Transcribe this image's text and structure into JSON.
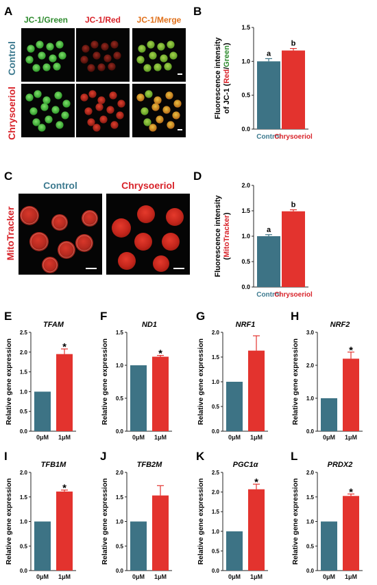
{
  "colors": {
    "control_bar": "#3d7385",
    "treated_bar": "#e3332e",
    "control_text": "#3d7a8f",
    "treated_text": "#d8232a",
    "green_channel": "#2e8b2e",
    "red_channel": "#d8232a",
    "merge_channel": "#e0701a",
    "axis": "#222222"
  },
  "panel_letters": [
    "A",
    "B",
    "C",
    "D",
    "E",
    "F",
    "G",
    "H",
    "I",
    "J",
    "K",
    "L"
  ],
  "panel_a": {
    "col_labels": [
      "JC-1/Green",
      "JC-1/Red",
      "JC-1/Merge"
    ],
    "row_labels": [
      "Control",
      "Chrysoeriol"
    ]
  },
  "panel_c": {
    "col_labels": [
      "Control",
      "Chrysoeriol"
    ],
    "row_label": "MitoTracker"
  },
  "chart_data": [
    {
      "panel": "B",
      "type": "bar",
      "categories": [
        "Control",
        "Chrysoeriol"
      ],
      "values": [
        1.0,
        1.16
      ],
      "errors": [
        0.04,
        0.03
      ],
      "sig_labels": [
        "a",
        "b"
      ],
      "ylabel": "Fluorescence intensity of JC-1 (Red/Green)",
      "ylabel_parts": [
        "Fluorescence intensity",
        "of JC-1 (",
        "Red",
        "/",
        "Green",
        ")"
      ],
      "ylim": [
        0,
        1.5
      ],
      "yticks": [
        "0.0",
        "0.5",
        "1.0",
        "1.5"
      ]
    },
    {
      "panel": "D",
      "type": "bar",
      "categories": [
        "Control",
        "Chrysoeriol"
      ],
      "values": [
        1.0,
        1.49
      ],
      "errors": [
        0.03,
        0.03
      ],
      "sig_labels": [
        "a",
        "b"
      ],
      "ylabel": "Fluorescence intensity (MitoTracker)",
      "ylabel_parts": [
        "Fluorescence intensity",
        "(",
        "MitoTracker",
        ")"
      ],
      "ylim": [
        0,
        2.0
      ],
      "yticks": [
        "0.0",
        "0.5",
        "1.0",
        "1.5",
        "2.0"
      ]
    },
    {
      "panel": "E",
      "type": "bar",
      "title": "TFAM",
      "categories": [
        "0μM",
        "1μM"
      ],
      "values": [
        1.0,
        1.95
      ],
      "errors": [
        0,
        0.13
      ],
      "star": "*",
      "ylabel": "Relative gene expression",
      "ylim": [
        0,
        2.5
      ],
      "yticks": [
        "0.0",
        "0.5",
        "1.0",
        "1.5",
        "2.0",
        "2.5"
      ]
    },
    {
      "panel": "F",
      "type": "bar",
      "title": "ND1",
      "categories": [
        "0μM",
        "1μM"
      ],
      "values": [
        1.0,
        1.13
      ],
      "errors": [
        0,
        0.02
      ],
      "star": "*",
      "ylabel": "Relative gene expression",
      "ylim": [
        0,
        1.5
      ],
      "yticks": [
        "0.0",
        "0.5",
        "1.0",
        "1.5"
      ]
    },
    {
      "panel": "G",
      "type": "bar",
      "title": "NRF1",
      "categories": [
        "0μM",
        "1μM"
      ],
      "values": [
        1.0,
        1.63
      ],
      "errors": [
        0,
        0.3
      ],
      "star": "",
      "ylabel": "Relative gene expression",
      "ylim": [
        0,
        2.0
      ],
      "yticks": [
        "0.0",
        "0.5",
        "1.0",
        "1.5",
        "2.0"
      ]
    },
    {
      "panel": "H",
      "type": "bar",
      "title": "NRF2",
      "categories": [
        "0μM",
        "1μM"
      ],
      "values": [
        1.0,
        2.2
      ],
      "errors": [
        0,
        0.2
      ],
      "star": "*",
      "ylabel": "Relative gene expression",
      "ylim": [
        0,
        3.0
      ],
      "yticks": [
        "0.0",
        "1.0",
        "2.0",
        "3.0"
      ]
    },
    {
      "panel": "I",
      "type": "bar",
      "title": "TFB1M",
      "categories": [
        "0μM",
        "1μM"
      ],
      "values": [
        1.0,
        1.61
      ],
      "errors": [
        0,
        0.03
      ],
      "star": "*",
      "ylabel": "Relative gene expression",
      "ylim": [
        0,
        2.0
      ],
      "yticks": [
        "0.0",
        "0.5",
        "1.0",
        "1.5",
        "2.0"
      ]
    },
    {
      "panel": "J",
      "type": "bar",
      "title": "TFB2M",
      "categories": [
        "0μM",
        "1μM"
      ],
      "values": [
        1.0,
        1.53
      ],
      "errors": [
        0,
        0.2
      ],
      "star": "",
      "ylabel": "Relative gene expression",
      "ylim": [
        0,
        2.0
      ],
      "yticks": [
        "0.0",
        "0.5",
        "1.0",
        "1.5",
        "2.0"
      ]
    },
    {
      "panel": "K",
      "type": "bar",
      "title": "PGC1α",
      "categories": [
        "0μM",
        "1μM"
      ],
      "values": [
        1.0,
        2.07
      ],
      "errors": [
        0,
        0.13
      ],
      "star": "*",
      "ylabel": "Relative gene expression",
      "ylim": [
        0,
        2.5
      ],
      "yticks": [
        "0.0",
        "0.5",
        "1.0",
        "1.5",
        "2.0",
        "2.5"
      ]
    },
    {
      "panel": "L",
      "type": "bar",
      "title": "PRDX2",
      "categories": [
        "0μM",
        "1μM"
      ],
      "values": [
        1.0,
        1.52
      ],
      "errors": [
        0,
        0.04
      ],
      "star": "*",
      "ylabel": "Relative gene expression",
      "ylim": [
        0,
        2.0
      ],
      "yticks": [
        "0.0",
        "0.5",
        "1.0",
        "1.5",
        "2.0"
      ]
    }
  ]
}
